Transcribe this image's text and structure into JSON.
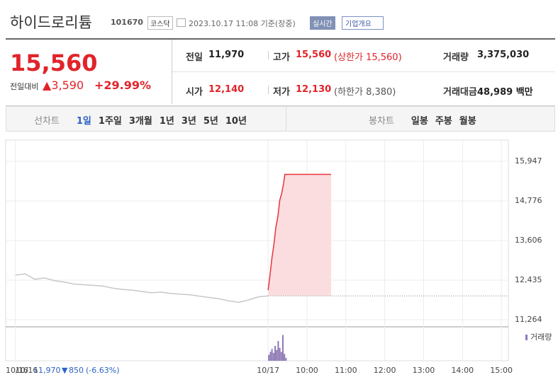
{
  "header": {
    "name": "하이드로리튬",
    "code": "101670",
    "market": "코스닥",
    "datetime": "2023.10.17 11:08 기준(장중)",
    "realtime": "실시간",
    "company": "기업개요"
  },
  "price": {
    "current": "15,560",
    "change_label": "전일대비",
    "change": "3,590",
    "change_pct": "+29.99%"
  },
  "stats": [
    {
      "label": "전일",
      "value": "11,970"
    },
    {
      "label": "고가",
      "value": "15,560",
      "extra": "(상한가 15,560)"
    },
    {
      "label": "거래량",
      "value": "3,375,030"
    },
    {
      "label": "시가",
      "value": "12,140"
    },
    {
      "label": "저가",
      "value": "12,130",
      "extra": "(하한가 8,380)"
    },
    {
      "label": "거래대금",
      "value": "48,989 백만"
    }
  ],
  "tabs": {
    "line_label": "선차트",
    "line": [
      "1일",
      "1주일",
      "3개월",
      "1년",
      "3년",
      "5년",
      "10년"
    ],
    "candle_label": "봉차트",
    "candle": [
      "일봉",
      "주봉",
      "월봉"
    ]
  },
  "chart_data": {
    "type": "line",
    "xlim": [
      -0.25,
      12.68
    ],
    "ylim": [
      11055,
      16574
    ],
    "xticks": [
      {
        "value": 0,
        "label": "10/16"
      },
      {
        "value": 6.5,
        "label": "10/17"
      },
      {
        "value": 7.5,
        "label": "10:00"
      },
      {
        "value": 8.5,
        "label": "11:00"
      },
      {
        "value": 9.5,
        "label": "12:00"
      },
      {
        "value": 10.5,
        "label": "13:00"
      },
      {
        "value": 11.5,
        "label": "14:00"
      },
      {
        "value": 12.5,
        "label": "15:00"
      }
    ],
    "yticks": [
      {
        "value": 15947,
        "label": "15,947"
      },
      {
        "value": 14776,
        "label": "14,776"
      },
      {
        "value": 13606,
        "label": "13,606"
      },
      {
        "value": 12435,
        "label": "12,435"
      },
      {
        "value": 11264,
        "label": "11,264"
      }
    ],
    "prev_close": 11970,
    "series": [
      {
        "color": "#c8c8c8",
        "x": [
          0,
          0.25,
          0.5,
          0.75,
          1,
          1.25,
          1.5,
          1.75,
          2,
          2.25,
          2.5,
          2.75,
          3,
          3.25,
          3.5,
          3.75,
          4,
          4.25,
          4.5,
          4.75,
          5,
          5.25,
          5.5,
          5.75,
          6,
          6.25,
          6.5
        ],
        "values": [
          12580,
          12620,
          12460,
          12500,
          12420,
          12380,
          12320,
          12300,
          12280,
          12260,
          12200,
          12160,
          12140,
          12100,
          12060,
          12080,
          12040,
          12020,
          12000,
          11960,
          11920,
          11880,
          11820,
          11780,
          11850,
          11940,
          11970
        ]
      },
      {
        "color": "#e8333a",
        "fill": "#fbdde0",
        "x": [
          6.5,
          6.55,
          6.6,
          6.65,
          6.7,
          6.75,
          6.8,
          6.85,
          6.9,
          6.93,
          8.12
        ],
        "values": [
          12140,
          12600,
          13100,
          13500,
          14000,
          14300,
          14800,
          15000,
          15300,
          15560,
          15560
        ]
      }
    ],
    "volume": {
      "name": "거래량",
      "color": "#8e7ab5",
      "ylim": [
        0,
        300000
      ],
      "x": [
        6.52,
        6.56,
        6.6,
        6.64,
        6.68,
        6.72,
        6.76,
        6.8,
        6.84,
        6.88,
        6.92,
        6.96
      ],
      "values": [
        60000,
        90000,
        120000,
        80000,
        150000,
        110000,
        200000,
        130000,
        90000,
        260000,
        70000,
        30000
      ]
    }
  },
  "footer": {
    "date": "10/16",
    "close": "11,970",
    "change": "850",
    "pct": "(-6.63%)"
  }
}
